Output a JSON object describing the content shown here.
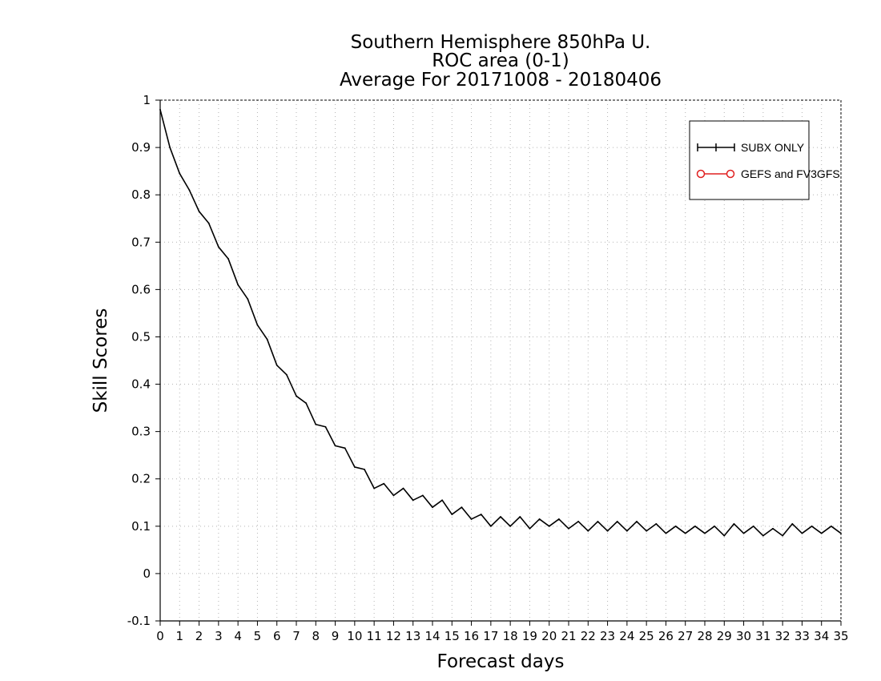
{
  "chart_data": {
    "type": "line",
    "title": [
      "Southern Hemisphere 850hPa U.",
      "ROC area (0-1)",
      "Average For 20171008 - 20180406"
    ],
    "xlabel": "Forecast days",
    "ylabel": "Skill Scores",
    "xlim": [
      0,
      35
    ],
    "ylim": [
      -0.1,
      1
    ],
    "x_ticks": [
      0,
      1,
      2,
      3,
      4,
      5,
      6,
      7,
      8,
      9,
      10,
      11,
      12,
      13,
      14,
      15,
      16,
      17,
      18,
      19,
      20,
      21,
      22,
      23,
      24,
      25,
      26,
      27,
      28,
      29,
      30,
      31,
      32,
      33,
      34,
      35
    ],
    "y_ticks": [
      -0.1,
      0,
      0.1,
      0.2,
      0.3,
      0.4,
      0.5,
      0.6,
      0.7,
      0.8,
      0.9,
      1
    ],
    "y_tick_labels": [
      "-0.1",
      "0",
      "0.1",
      "0.2",
      "0.3",
      "0.4",
      "0.5",
      "0.6",
      "0.7",
      "0.8",
      "0.9",
      "1"
    ],
    "grid": true,
    "legend_position": "top-right",
    "series": [
      {
        "name": "SUBX ONLY",
        "color": "#000000",
        "marker": "plus",
        "x": [
          0,
          0.5,
          1,
          1.5,
          2,
          2.5,
          3,
          3.5,
          4,
          4.5,
          5,
          5.5,
          6,
          6.5,
          7,
          7.5,
          8,
          8.5,
          9,
          9.5,
          10,
          10.5,
          11,
          11.5,
          12,
          12.5,
          13,
          13.5,
          14,
          14.5,
          15,
          15.5,
          16,
          16.5,
          17,
          17.5,
          18,
          18.5,
          19,
          19.5,
          20,
          20.5,
          21,
          21.5,
          22,
          22.5,
          23,
          23.5,
          24,
          24.5,
          25,
          25.5,
          26,
          26.5,
          27,
          27.5,
          28,
          28.5,
          29,
          29.5,
          30,
          30.5,
          31,
          31.5,
          32,
          32.5,
          33,
          33.5,
          34,
          34.5,
          35
        ],
        "y": [
          0.98,
          0.9,
          0.845,
          0.81,
          0.765,
          0.74,
          0.69,
          0.665,
          0.61,
          0.58,
          0.525,
          0.495,
          0.44,
          0.42,
          0.375,
          0.36,
          0.315,
          0.31,
          0.27,
          0.265,
          0.225,
          0.22,
          0.18,
          0.19,
          0.165,
          0.18,
          0.155,
          0.165,
          0.14,
          0.155,
          0.125,
          0.14,
          0.115,
          0.125,
          0.1,
          0.12,
          0.1,
          0.12,
          0.095,
          0.115,
          0.1,
          0.115,
          0.095,
          0.11,
          0.09,
          0.11,
          0.09,
          0.11,
          0.09,
          0.11,
          0.09,
          0.105,
          0.085,
          0.1,
          0.085,
          0.1,
          0.085,
          0.1,
          0.08,
          0.105,
          0.085,
          0.1,
          0.08,
          0.095,
          0.08,
          0.105,
          0.085,
          0.1,
          0.085,
          0.1,
          0.085
        ]
      },
      {
        "name": "GEFS and FV3GFS",
        "color": "#e02020",
        "marker": "circle",
        "x": [],
        "y": []
      }
    ]
  }
}
